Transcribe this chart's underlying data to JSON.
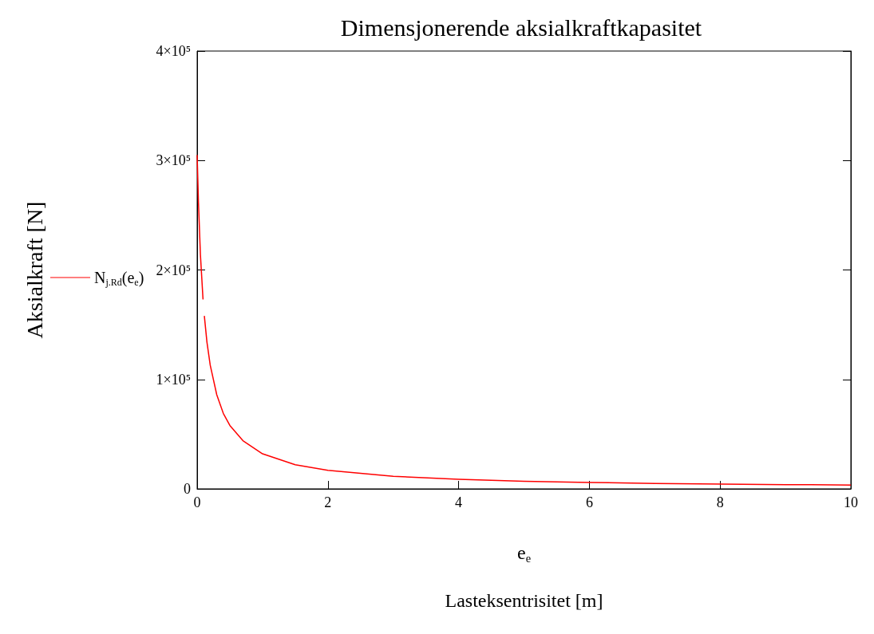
{
  "chart_data": {
    "type": "line",
    "title": "Dimensjonerende aksialkraftkapasitet",
    "xlabel": "e$_{e}$\nLasteksentrisitet [m]",
    "ylabel": "Aksialkraft [N]",
    "x": [
      0,
      0.02,
      0.05,
      0.09,
      0.1,
      0.11,
      0.15,
      0.2,
      0.3,
      0.4,
      0.5,
      0.7,
      1,
      1.5,
      2,
      3,
      4,
      5,
      6,
      7,
      8,
      9,
      10
    ],
    "series": [
      {
        "name": "N$_{j.Rd}$(e$_{e}$)",
        "color": "#ff0000",
        "values": [
          305000,
          262000,
          214000,
          173000,
          null,
          158000,
          134000,
          113000,
          86000,
          69000,
          58000,
          44000,
          32000,
          22000,
          17000,
          11500,
          8700,
          7000,
          5900,
          5000,
          4400,
          3900,
          3500
        ]
      }
    ],
    "xlim": [
      0,
      10
    ],
    "xticks": [
      0,
      2,
      4,
      6,
      8,
      10
    ],
    "ylim": [
      0,
      400000
    ],
    "yticks": [
      0,
      {
        "value": 100000,
        "label": "1×10⁵"
      },
      {
        "value": 200000,
        "label": "2×10⁵"
      },
      {
        "value": 300000,
        "label": "3×10⁵"
      },
      {
        "value": 400000,
        "label": "4×10⁵"
      }
    ],
    "legend": "left",
    "grid": false
  }
}
